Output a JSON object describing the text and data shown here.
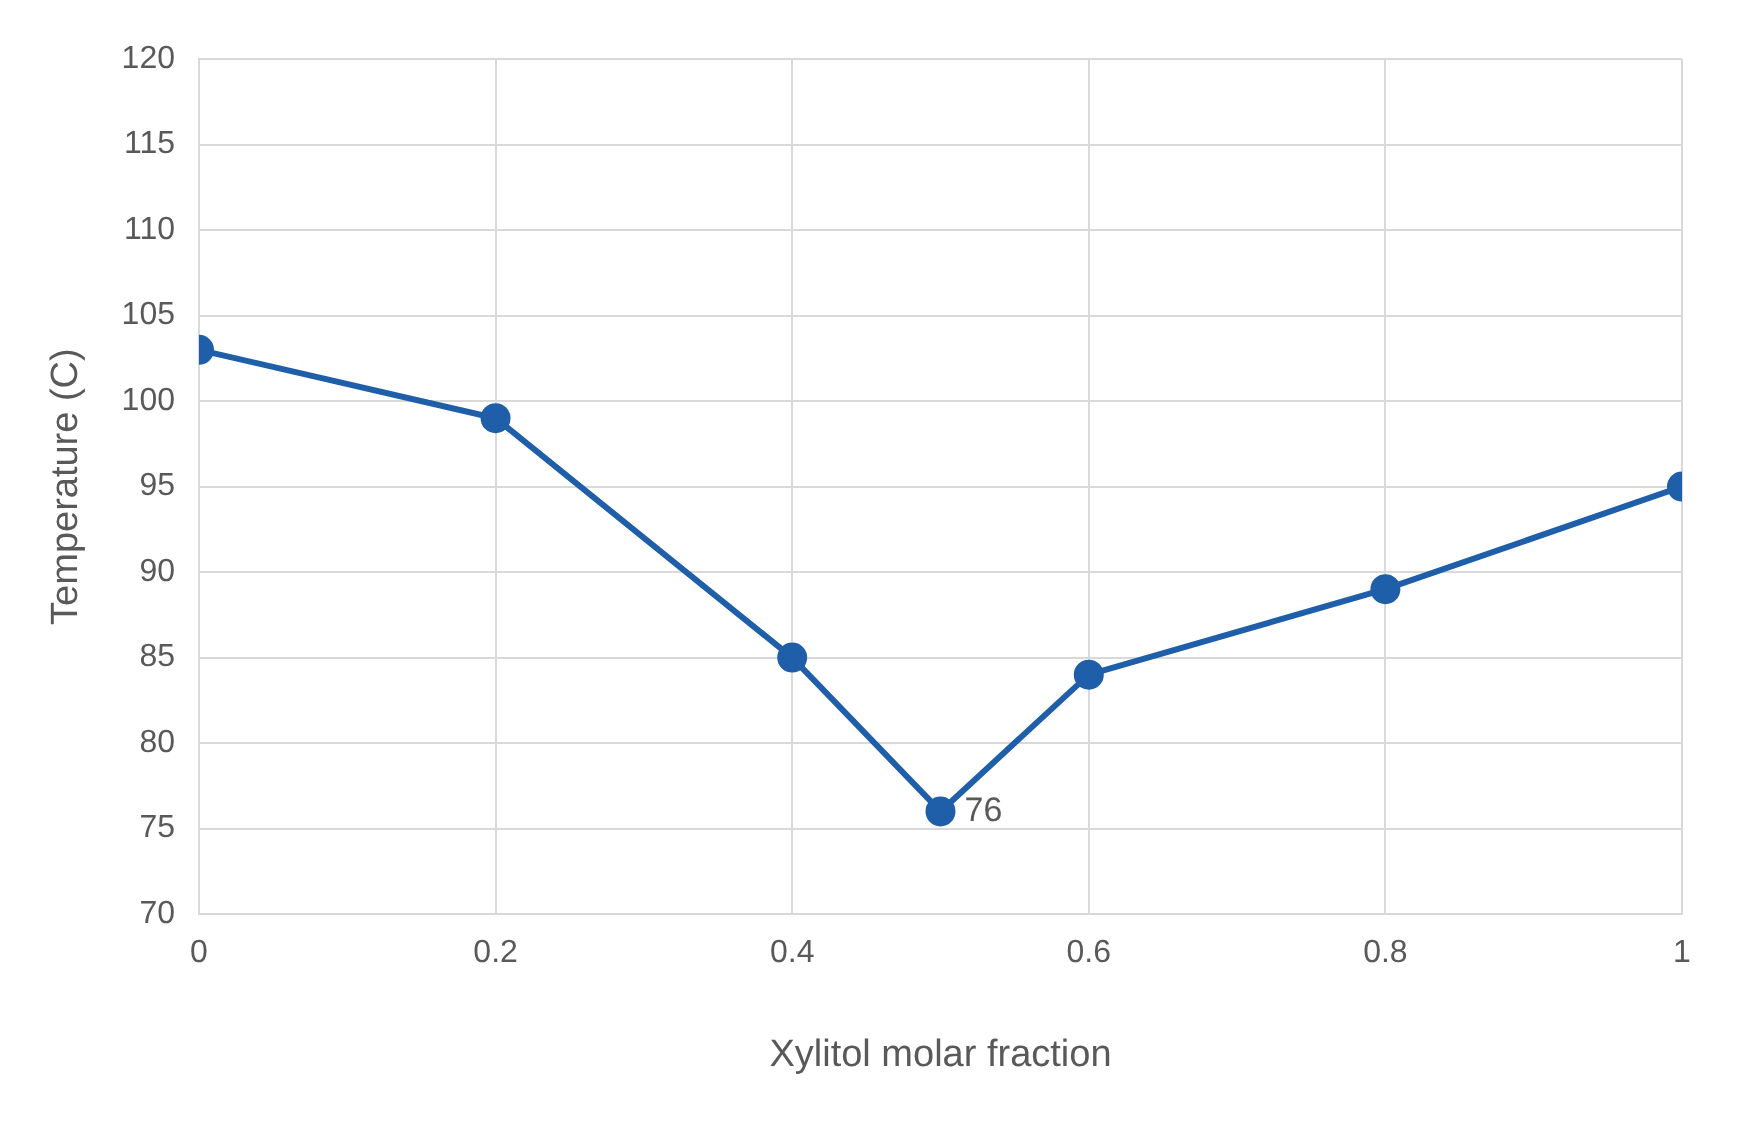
{
  "chart_data": {
    "type": "line",
    "xlabel": "Xylitol molar fraction",
    "ylabel": "Temperature (C)",
    "x": [
      0,
      0.2,
      0.4,
      0.5,
      0.6,
      0.8,
      1
    ],
    "series": [
      {
        "color": "#1f5ea8",
        "values": [
          103,
          99,
          85,
          76,
          84,
          89,
          95
        ]
      }
    ],
    "xlim": [
      0,
      1
    ],
    "xticks": [
      0,
      0.2,
      0.4,
      0.6,
      0.8,
      1
    ],
    "ylim": [
      70,
      120
    ],
    "yticks": [
      70,
      75,
      80,
      85,
      90,
      95,
      100,
      105,
      110,
      115,
      120
    ],
    "annotations": [
      {
        "text": "76",
        "x": 0.5,
        "y": 76
      }
    ],
    "grid": true,
    "legend": false,
    "marker": "circle",
    "line_style": "solid"
  }
}
